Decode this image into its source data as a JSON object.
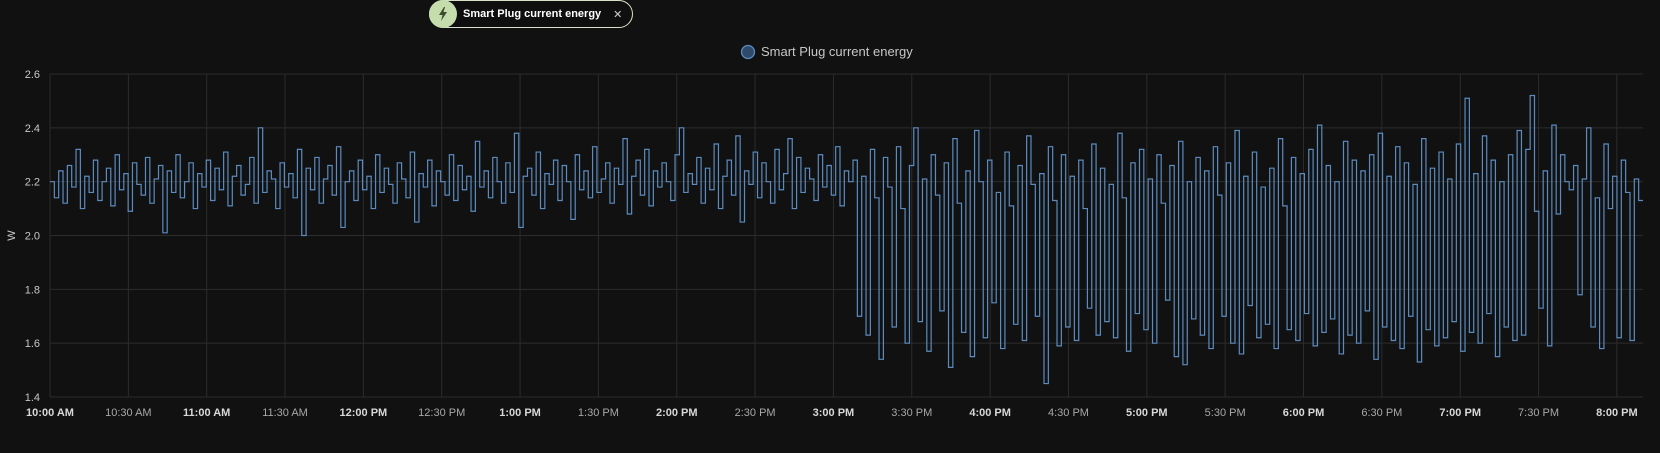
{
  "filter_chip": {
    "label": "Smart Plug current energy",
    "icon": "flash-icon",
    "close_icon": "close-icon"
  },
  "colors": {
    "background": "#111111",
    "series": "#5b8bbf",
    "legend_marker_fill": "#2e4a6b",
    "grid": "#2c2c2c",
    "chip_icon_bg": "#c5dcad",
    "text": "#c8c8c8"
  },
  "chart_data": {
    "type": "line",
    "step": true,
    "grid": true,
    "legend_position": "top-center",
    "legend": [
      "Smart Plug current energy"
    ],
    "title": "",
    "xlabel": "",
    "ylabel": "W",
    "ylim": [
      1.4,
      2.6
    ],
    "y_ticks": [
      "2.6",
      "2.4",
      "2.2",
      "2.0",
      "1.8",
      "1.6",
      "1.4"
    ],
    "x_range": [
      "10:00",
      "20:10"
    ],
    "x_ticks": [
      {
        "time": "10:00",
        "label": "10:00 AM",
        "bold": true
      },
      {
        "time": "10:30",
        "label": "10:30 AM",
        "bold": false
      },
      {
        "time": "11:00",
        "label": "11:00 AM",
        "bold": true
      },
      {
        "time": "11:30",
        "label": "11:30 AM",
        "bold": false
      },
      {
        "time": "12:00",
        "label": "12:00 PM",
        "bold": true
      },
      {
        "time": "12:30",
        "label": "12:30 PM",
        "bold": false
      },
      {
        "time": "13:00",
        "label": "1:00 PM",
        "bold": true
      },
      {
        "time": "13:30",
        "label": "1:30 PM",
        "bold": false
      },
      {
        "time": "14:00",
        "label": "2:00 PM",
        "bold": true
      },
      {
        "time": "14:30",
        "label": "2:30 PM",
        "bold": false
      },
      {
        "time": "15:00",
        "label": "3:00 PM",
        "bold": true
      },
      {
        "time": "15:30",
        "label": "3:30 PM",
        "bold": false
      },
      {
        "time": "16:00",
        "label": "4:00 PM",
        "bold": true
      },
      {
        "time": "16:30",
        "label": "4:30 PM",
        "bold": false
      },
      {
        "time": "17:00",
        "label": "5:00 PM",
        "bold": true
      },
      {
        "time": "17:30",
        "label": "5:30 PM",
        "bold": false
      },
      {
        "time": "18:00",
        "label": "6:00 PM",
        "bold": true
      },
      {
        "time": "18:30",
        "label": "6:30 PM",
        "bold": false
      },
      {
        "time": "19:00",
        "label": "7:00 PM",
        "bold": true
      },
      {
        "time": "19:30",
        "label": "7:30 PM",
        "bold": false
      },
      {
        "time": "20:00",
        "label": "8:00 PM",
        "bold": true
      }
    ],
    "series": [
      {
        "name": "Smart Plug current energy",
        "x_start": "10:00",
        "x_end": "20:10",
        "values": [
          2.2,
          2.14,
          2.24,
          2.12,
          2.26,
          2.18,
          2.32,
          2.1,
          2.22,
          2.16,
          2.28,
          2.13,
          2.2,
          2.25,
          2.11,
          2.3,
          2.17,
          2.23,
          2.09,
          2.27,
          2.19,
          2.15,
          2.29,
          2.12,
          2.21,
          2.26,
          2.01,
          2.24,
          2.16,
          2.3,
          2.14,
          2.2,
          2.27,
          2.1,
          2.23,
          2.18,
          2.28,
          2.13,
          2.25,
          2.17,
          2.31,
          2.11,
          2.22,
          2.26,
          2.15,
          2.19,
          2.29,
          2.12,
          2.4,
          2.16,
          2.24,
          2.21,
          2.1,
          2.27,
          2.18,
          2.23,
          2.14,
          2.32,
          2.0,
          2.25,
          2.17,
          2.29,
          2.12,
          2.21,
          2.26,
          2.15,
          2.33,
          2.03,
          2.2,
          2.24,
          2.13,
          2.28,
          2.17,
          2.22,
          2.1,
          2.3,
          2.16,
          2.25,
          2.19,
          2.12,
          2.27,
          2.21,
          2.14,
          2.31,
          2.05,
          2.23,
          2.18,
          2.28,
          2.11,
          2.24,
          2.2,
          2.15,
          2.3,
          2.13,
          2.26,
          2.17,
          2.22,
          2.09,
          2.35,
          2.18,
          2.24,
          2.14,
          2.29,
          2.2,
          2.12,
          2.27,
          2.16,
          2.38,
          2.03,
          2.22,
          2.25,
          2.15,
          2.31,
          2.1,
          2.23,
          2.19,
          2.28,
          2.13,
          2.26,
          2.2,
          2.06,
          2.3,
          2.17,
          2.24,
          2.14,
          2.33,
          2.16,
          2.21,
          2.27,
          2.12,
          2.25,
          2.19,
          2.36,
          2.08,
          2.22,
          2.28,
          2.15,
          2.32,
          2.11,
          2.24,
          2.18,
          2.27,
          2.2,
          2.13,
          2.3,
          2.4,
          2.16,
          2.23,
          2.19,
          2.29,
          2.12,
          2.25,
          2.17,
          2.34,
          2.1,
          2.22,
          2.28,
          2.15,
          2.37,
          2.05,
          2.24,
          2.19,
          2.31,
          2.14,
          2.27,
          2.2,
          2.12,
          2.32,
          2.17,
          2.23,
          2.36,
          2.1,
          2.29,
          2.16,
          2.25,
          2.21,
          2.13,
          2.3,
          2.18,
          2.26,
          2.15,
          2.33,
          2.11,
          2.24,
          2.2,
          2.28,
          1.7,
          2.22,
          1.63,
          2.32,
          2.14,
          1.54,
          2.29,
          2.18,
          1.66,
          2.33,
          2.1,
          1.6,
          2.26,
          2.4,
          1.68,
          2.21,
          1.57,
          2.3,
          2.15,
          1.72,
          2.27,
          1.51,
          2.36,
          2.12,
          1.64,
          2.24,
          1.55,
          2.39,
          2.2,
          1.62,
          2.28,
          1.75,
          2.16,
          1.58,
          2.31,
          2.11,
          1.67,
          2.26,
          1.61,
          2.37,
          2.19,
          1.7,
          2.23,
          1.45,
          2.33,
          2.13,
          1.59,
          2.3,
          1.66,
          2.22,
          1.61,
          2.28,
          2.1,
          1.73,
          2.34,
          1.63,
          2.25,
          1.68,
          2.19,
          1.62,
          2.38,
          2.14,
          1.57,
          2.27,
          1.71,
          2.32,
          1.65,
          2.21,
          1.6,
          2.3,
          2.12,
          1.76,
          2.26,
          1.55,
          2.35,
          1.52,
          2.2,
          1.69,
          2.29,
          1.63,
          2.24,
          1.58,
          2.33,
          2.15,
          1.7,
          2.27,
          1.6,
          2.39,
          1.56,
          2.22,
          1.74,
          2.31,
          1.62,
          2.18,
          1.67,
          2.25,
          1.58,
          2.36,
          2.11,
          1.65,
          2.29,
          1.61,
          2.23,
          1.71,
          2.32,
          1.59,
          2.41,
          1.64,
          2.26,
          1.69,
          2.2,
          1.56,
          2.35,
          1.63,
          2.28,
          1.6,
          2.24,
          1.72,
          2.3,
          1.54,
          2.38,
          1.66,
          2.22,
          1.61,
          2.33,
          1.58,
          2.27,
          1.7,
          2.19,
          1.53,
          2.36,
          1.65,
          2.25,
          1.59,
          2.31,
          1.62,
          2.21,
          1.68,
          2.34,
          1.57,
          2.51,
          1.64,
          2.23,
          1.6,
          2.37,
          1.71,
          2.28,
          1.55,
          2.2,
          1.66,
          2.3,
          1.61,
          2.39,
          1.63,
          2.32,
          2.52,
          2.09,
          1.73,
          2.24,
          1.59,
          2.41,
          2.08,
          2.3,
          2.2,
          2.17,
          2.26,
          1.78,
          2.21,
          2.4,
          1.66,
          2.14,
          1.58,
          2.34,
          2.1,
          2.22,
          1.62,
          2.28,
          2.16,
          1.61,
          2.21,
          2.13
        ]
      }
    ]
  }
}
